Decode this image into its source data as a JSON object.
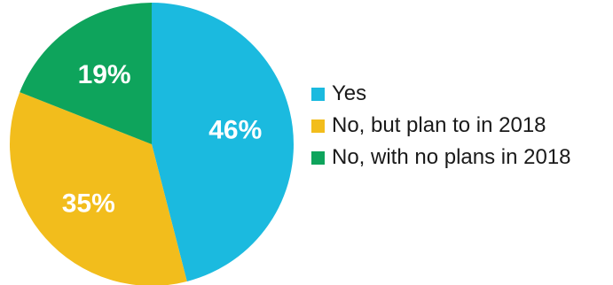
{
  "chart_data": {
    "type": "pie",
    "categories": [
      "Yes",
      "No, but plan to in 2018",
      "No, with no plans in 2018"
    ],
    "values": [
      46,
      35,
      19
    ],
    "value_labels": [
      "46%",
      "35%",
      "19%"
    ],
    "colors": [
      "#1bbadf",
      "#f2bd1c",
      "#0ea45c"
    ],
    "start_angle_deg": 0,
    "direction": "clockwise",
    "legend_position": "right"
  }
}
